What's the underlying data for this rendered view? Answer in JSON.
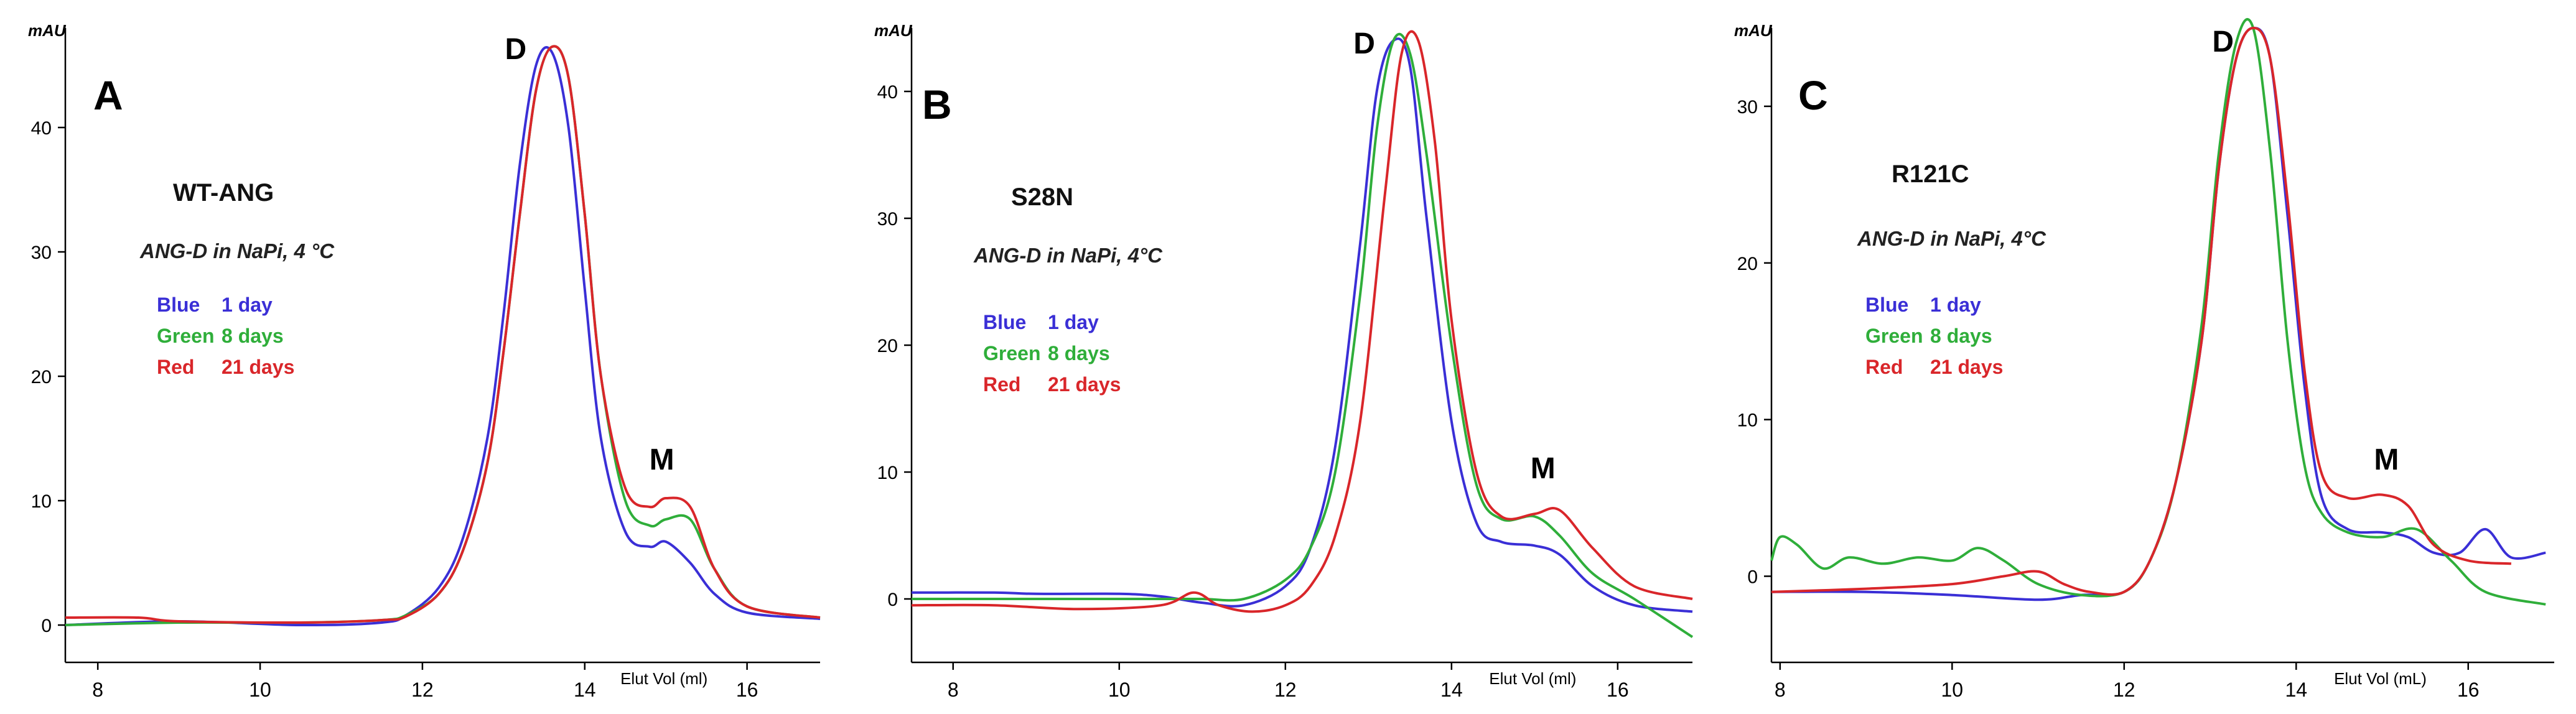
{
  "colors": {
    "blue": "#3a2fd6",
    "green": "#2fae3a",
    "red": "#d9262a",
    "axis": "#000000"
  },
  "chart_data": [
    {
      "type": "line",
      "panel": "A",
      "sample": "WT-ANG",
      "condition": "ANG-D in NaPi, 4 °C",
      "ylabel": "mAU",
      "xlabel": "Elut Vol (ml)",
      "xlim": [
        7.6,
        16.9
      ],
      "ylim": [
        -3,
        48
      ],
      "xticks": [
        8,
        10,
        12,
        14,
        16
      ],
      "xtick_labels": [
        "8",
        "10",
        "12",
        "14",
        "16"
      ],
      "yticks": [
        0,
        10,
        20,
        30,
        40
      ],
      "ytick_labels": [
        "0",
        "10",
        "20",
        "30",
        "40"
      ],
      "legend": [
        {
          "color_name": "Blue",
          "duration": "1 day",
          "color": "blue"
        },
        {
          "color_name": "Green",
          "duration": "8 days",
          "color": "green"
        },
        {
          "color_name": "Red",
          "duration": "21 days",
          "color": "red"
        }
      ],
      "annotations": [
        {
          "text": "D",
          "x": 13.15,
          "y": 45.5
        },
        {
          "text": "M",
          "x": 14.95,
          "y": 12.5
        }
      ],
      "series": [
        {
          "name": "Blue 1 day",
          "color": "blue",
          "x": [
            7.6,
            9,
            10.5,
            11.5,
            11.8,
            12.2,
            12.5,
            12.8,
            13.0,
            13.2,
            13.4,
            13.6,
            13.8,
            14.0,
            14.2,
            14.5,
            14.8,
            15.0,
            15.3,
            15.6,
            16.0,
            16.9
          ],
          "y": [
            0,
            0.3,
            0,
            0.2,
            0.8,
            3,
            7,
            15,
            25,
            37,
            45,
            46,
            40,
            27,
            15,
            7.5,
            6.3,
            6.7,
            5,
            2.5,
            1,
            0.5
          ]
        },
        {
          "name": "Green 8 days",
          "color": "green",
          "x": [
            7.6,
            9,
            10.5,
            11.5,
            11.8,
            12.2,
            12.5,
            12.8,
            13.0,
            13.2,
            13.4,
            13.6,
            13.8,
            14.0,
            14.2,
            14.5,
            14.8,
            15.0,
            15.3,
            15.6,
            16.0,
            16.9
          ],
          "y": [
            0,
            0.2,
            0.2,
            0.4,
            0.8,
            2.5,
            6,
            13,
            22,
            33,
            43,
            46.5,
            44,
            33,
            20,
            10,
            8,
            8.5,
            8.5,
            4.5,
            1.5,
            0.6
          ]
        },
        {
          "name": "Red 21 days",
          "color": "red",
          "x": [
            7.6,
            8.5,
            9,
            10.5,
            11.5,
            11.8,
            12.2,
            12.5,
            12.8,
            13.0,
            13.2,
            13.4,
            13.6,
            13.8,
            14.0,
            14.2,
            14.5,
            14.8,
            15.0,
            15.3,
            15.6,
            16.0,
            16.9
          ],
          "y": [
            0.6,
            0.6,
            0.3,
            0.2,
            0.4,
            0.7,
            2.5,
            6,
            13,
            22,
            33,
            43,
            46.5,
            44,
            33,
            20,
            11,
            9.5,
            10.2,
            9.5,
            4.5,
            1.5,
            0.6
          ]
        }
      ]
    },
    {
      "type": "line",
      "panel": "B",
      "sample": "S28N",
      "condition": "ANG-D in NaPi, 4°C",
      "ylabel": "mAU",
      "xlabel": "Elut Vol (ml)",
      "xlim": [
        7.5,
        16.9
      ],
      "ylim": [
        -5,
        45
      ],
      "xticks": [
        8,
        10,
        12,
        14,
        16
      ],
      "xtick_labels": [
        "8",
        "10",
        "12",
        "14",
        "16"
      ],
      "yticks": [
        0,
        10,
        20,
        30,
        40
      ],
      "ytick_labels": [
        "0",
        "10",
        "20",
        "30",
        "40"
      ],
      "legend": [
        {
          "color_name": "Blue",
          "duration": "1 day",
          "color": "blue"
        },
        {
          "color_name": "Green",
          "duration": "8 days",
          "color": "green"
        },
        {
          "color_name": "Red",
          "duration": "21 days",
          "color": "red"
        }
      ],
      "annotations": [
        {
          "text": "D",
          "x": 12.95,
          "y": 43
        },
        {
          "text": "M",
          "x": 15.1,
          "y": 9.5
        }
      ],
      "series": [
        {
          "name": "Blue 1 day",
          "color": "blue",
          "x": [
            7.5,
            8.5,
            9,
            10,
            10.5,
            11,
            11.5,
            12.0,
            12.3,
            12.6,
            12.9,
            13.1,
            13.3,
            13.5,
            13.7,
            14.0,
            14.3,
            14.6,
            15.0,
            15.3,
            15.7,
            16.2,
            16.9
          ],
          "y": [
            0.5,
            0.5,
            0.4,
            0.4,
            0.2,
            -0.3,
            -0.5,
            1,
            4,
            12,
            28,
            40,
            44,
            42,
            30,
            14,
            6,
            4.5,
            4.2,
            3.5,
            1,
            -0.5,
            -1
          ]
        },
        {
          "name": "Green 8 days",
          "color": "green",
          "x": [
            7.5,
            8.5,
            9,
            10,
            10.5,
            11,
            11.5,
            12.0,
            12.3,
            12.6,
            12.9,
            13.1,
            13.3,
            13.5,
            13.7,
            14.0,
            14.3,
            14.6,
            15.0,
            15.3,
            15.7,
            16.2,
            16.9
          ],
          "y": [
            0,
            0,
            0,
            0,
            0,
            0,
            0,
            1.5,
            4,
            10,
            24,
            37,
            44,
            43,
            35,
            20,
            9,
            6.3,
            6.5,
            5,
            2,
            0,
            -3
          ]
        },
        {
          "name": "Red 21 days",
          "color": "red",
          "x": [
            7.5,
            8.5,
            9.5,
            10.5,
            10.9,
            11.2,
            11.6,
            12.0,
            12.3,
            12.6,
            12.9,
            13.2,
            13.4,
            13.6,
            13.8,
            14.0,
            14.3,
            14.6,
            15.0,
            15.3,
            15.7,
            16.2,
            16.9
          ],
          "y": [
            -0.5,
            -0.5,
            -0.8,
            -0.5,
            0.5,
            -0.5,
            -1,
            -0.5,
            1,
            5,
            14,
            32,
            43,
            44,
            36,
            22,
            10,
            6.5,
            6.7,
            7,
            4,
            1,
            0
          ]
        }
      ]
    },
    {
      "type": "line",
      "panel": "C",
      "sample": "R121C",
      "condition": "ANG-D in NaPi, 4°C",
      "ylabel": "mAU",
      "xlabel": "Elut Vol (mL)",
      "xlim": [
        7.9,
        17.0
      ],
      "ylim": [
        -5.5,
        35
      ],
      "xticks": [
        8,
        10,
        12,
        14,
        16
      ],
      "xtick_labels": [
        "8",
        "10",
        "12",
        "14",
        "16"
      ],
      "yticks": [
        0,
        10,
        20,
        30
      ],
      "ytick_labels": [
        "0",
        "10",
        "20",
        "30"
      ],
      "legend": [
        {
          "color_name": "Blue",
          "duration": "1 day",
          "color": "blue"
        },
        {
          "color_name": "Green",
          "duration": "8 days",
          "color": "green"
        },
        {
          "color_name": "Red",
          "duration": "21 days",
          "color": "red"
        }
      ],
      "annotations": [
        {
          "text": "D",
          "x": 13.15,
          "y": 33.5
        },
        {
          "text": "M",
          "x": 15.05,
          "y": 6.8
        }
      ],
      "series": [
        {
          "name": "Blue 1 day",
          "color": "blue",
          "x": [
            7.9,
            9,
            10,
            11,
            11.5,
            12.0,
            12.3,
            12.6,
            12.9,
            13.1,
            13.3,
            13.5,
            13.7,
            13.9,
            14.1,
            14.3,
            14.6,
            15.0,
            15.3,
            15.6,
            15.9,
            16.2,
            16.5,
            16.9
          ],
          "y": [
            -1,
            -1,
            -1.2,
            -1.5,
            -1.2,
            -1,
            1,
            6,
            15,
            26,
            33,
            35,
            33,
            23,
            12,
            5,
            3,
            2.8,
            2.5,
            1.5,
            1.5,
            3,
            1.2,
            1.5
          ]
        },
        {
          "name": "Green 8 days",
          "color": "green",
          "x": [
            7.9,
            8.0,
            8.2,
            8.5,
            8.8,
            9.2,
            9.6,
            10.0,
            10.3,
            10.6,
            11.0,
            11.5,
            12.0,
            12.3,
            12.6,
            12.9,
            13.1,
            13.3,
            13.5,
            13.7,
            13.9,
            14.1,
            14.3,
            14.6,
            15.0,
            15.4,
            15.8,
            16.2,
            16.9
          ],
          "y": [
            1,
            2.5,
            2,
            0.5,
            1.2,
            0.8,
            1.2,
            1,
            1.8,
            1,
            -0.5,
            -1.2,
            -1,
            1,
            6,
            16,
            27,
            34,
            35,
            27,
            15,
            7,
            4,
            2.8,
            2.5,
            3,
            1,
            -1,
            -1.8
          ]
        },
        {
          "name": "Red 21 days",
          "color": "red",
          "x": [
            7.9,
            9,
            10,
            10.6,
            11.0,
            11.3,
            11.6,
            12.0,
            12.3,
            12.6,
            12.9,
            13.1,
            13.3,
            13.5,
            13.7,
            13.9,
            14.1,
            14.3,
            14.6,
            15.0,
            15.3,
            15.6,
            16.0,
            16.5
          ],
          "y": [
            -1,
            -0.8,
            -0.5,
            0,
            0.3,
            -0.5,
            -1,
            -1,
            1,
            6,
            15,
            26,
            33,
            35,
            33,
            24,
            13,
            6.5,
            5,
            5.2,
            4.5,
            2,
            1,
            0.8
          ]
        }
      ]
    }
  ]
}
